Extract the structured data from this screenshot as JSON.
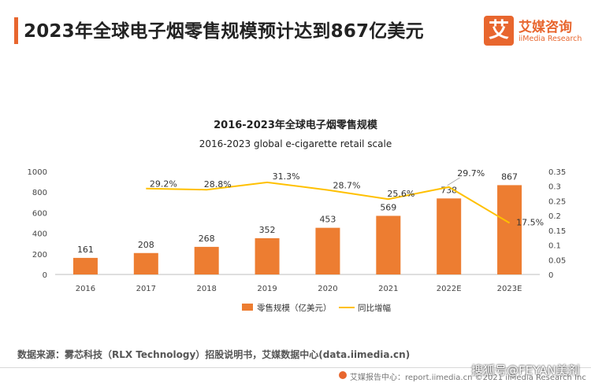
{
  "header": {
    "title": "2023年全球电子烟零售规模预计达到867亿美元",
    "logo_mark": "艾",
    "logo_cn": "艾媒咨询",
    "logo_en": "iiMedia Research"
  },
  "chart_data": {
    "type": "bar",
    "title": "2016-2023年全球电子烟零售规模",
    "subtitle": "2016-2023 global e-cigarette retail scale",
    "categories": [
      "2016",
      "2017",
      "2018",
      "2019",
      "2020",
      "2021",
      "2022E",
      "2023E"
    ],
    "series": [
      {
        "name": "零售规模（亿美元）",
        "type": "bar",
        "axis": "left",
        "color": "#ed7d31",
        "values": [
          161,
          208,
          268,
          352,
          453,
          569,
          738,
          867
        ],
        "labels": [
          "161",
          "208",
          "268",
          "352",
          "453",
          "569",
          "738",
          "867"
        ]
      },
      {
        "name": "同比增幅",
        "type": "line",
        "axis": "right",
        "color": "#ffc000",
        "values": [
          null,
          0.292,
          0.288,
          0.313,
          0.287,
          0.256,
          0.297,
          0.175
        ],
        "labels": [
          "",
          "29.2%",
          "28.8%",
          "31.3%",
          "28.7%",
          "25.6%",
          "29.7%",
          "17.5%"
        ]
      }
    ],
    "y_left": {
      "min": 0,
      "max": 1000,
      "ticks": [
        "0",
        "200",
        "400",
        "600",
        "800",
        "1000"
      ]
    },
    "y_right": {
      "min": 0,
      "max": 0.35,
      "ticks": [
        "0",
        "0.05",
        "0.1",
        "0.15",
        "0.2",
        "0.25",
        "0.3",
        "0.35"
      ]
    },
    "grid": false,
    "legend_position": "bottom"
  },
  "source": "数据来源：雾芯科技（RLX Technology）招股说明书，艾媒数据中心(data.iimedia.cn)",
  "footer": "艾媒报告中心：report.iimedia.cn  ©2021  iiMedia Research Inc",
  "watermark": "搜狐号@FEYAN美剂"
}
